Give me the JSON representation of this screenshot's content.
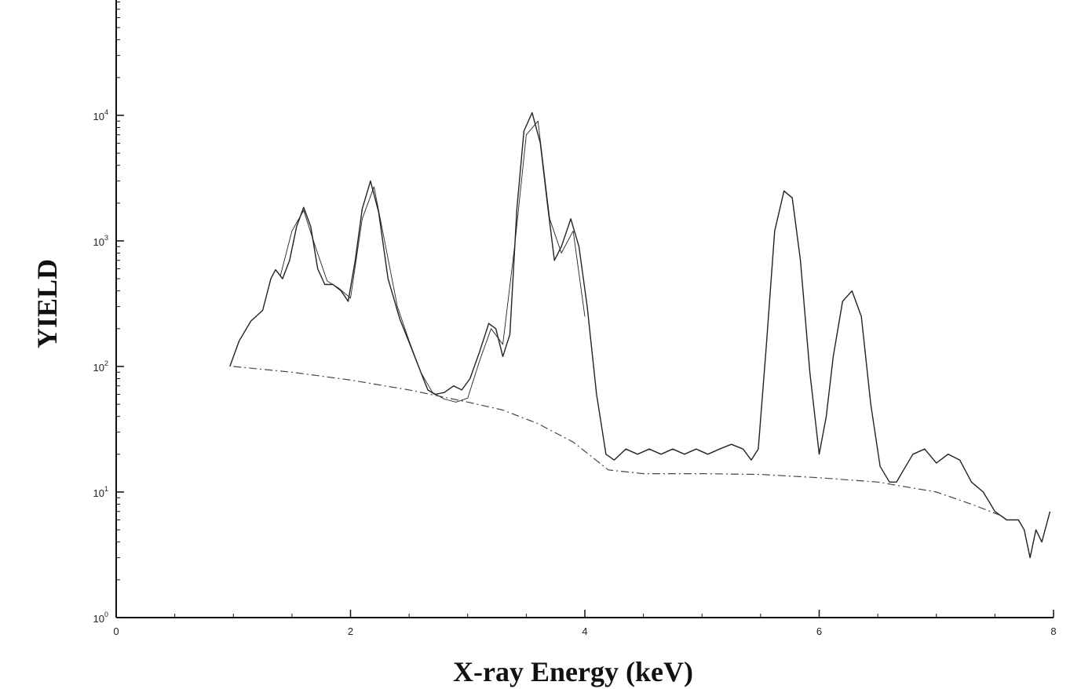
{
  "chart_data": {
    "type": "line",
    "title": "",
    "xlabel": "X-ray Energy (keV)",
    "ylabel": "YIELD",
    "xlim": [
      0,
      8
    ],
    "ylim": [
      1,
      100000
    ],
    "yscale": "log",
    "grid": false,
    "x_ticks": [
      {
        "value": 0,
        "label": "0"
      },
      {
        "value": 2,
        "label": "2"
      },
      {
        "value": 4,
        "label": "4"
      },
      {
        "value": 6,
        "label": "6"
      },
      {
        "value": 8,
        "label": "8"
      }
    ],
    "y_ticks": [
      {
        "value": 1,
        "base": "10",
        "exp": "0"
      },
      {
        "value": 10,
        "base": "10",
        "exp": "1"
      },
      {
        "value": 100,
        "base": "10",
        "exp": "2"
      },
      {
        "value": 1000,
        "base": "10",
        "exp": "3"
      },
      {
        "value": 10000,
        "base": "10",
        "exp": "4"
      }
    ],
    "series": [
      {
        "name": "",
        "color": "#222222",
        "style": "solid",
        "x": [
          0.97,
          1.05,
          1.15,
          1.25,
          1.32,
          1.36,
          1.42,
          1.48,
          1.54,
          1.6,
          1.66,
          1.72,
          1.78,
          1.85,
          1.92,
          1.98,
          2.04,
          2.1,
          2.17,
          2.24,
          2.32,
          2.42,
          2.52,
          2.6,
          2.66,
          2.72,
          2.8,
          2.88,
          2.95,
          3.02,
          3.1,
          3.18,
          3.24,
          3.3,
          3.36,
          3.42,
          3.48,
          3.55,
          3.62,
          3.68,
          3.74,
          3.8,
          3.88,
          3.95,
          4.02,
          4.1,
          4.18,
          4.25,
          4.35,
          4.45,
          4.55,
          4.65,
          4.75,
          4.85,
          4.95,
          5.05,
          5.15,
          5.25,
          5.35,
          5.42,
          5.48,
          5.55,
          5.62,
          5.7,
          5.77,
          5.84,
          5.92,
          6.0,
          6.06,
          6.12,
          6.2,
          6.28,
          6.36,
          6.44,
          6.52,
          6.6,
          6.66,
          6.72,
          6.8,
          6.9,
          7.0,
          7.1,
          7.2,
          7.3,
          7.4,
          7.5,
          7.6,
          7.7,
          7.75,
          7.8,
          7.85,
          7.9,
          7.97
        ],
        "y": [
          100,
          160,
          230,
          280,
          500,
          590,
          500,
          700,
          1300,
          1850,
          1300,
          600,
          450,
          450,
          400,
          330,
          700,
          1800,
          3000,
          1700,
          500,
          240,
          140,
          90,
          65,
          60,
          62,
          70,
          65,
          80,
          130,
          220,
          200,
          120,
          180,
          1800,
          7500,
          10500,
          6000,
          2000,
          700,
          900,
          1500,
          900,
          300,
          60,
          20,
          18,
          22,
          20,
          22,
          20,
          22,
          20,
          22,
          20,
          22,
          24,
          22,
          18,
          22,
          150,
          1200,
          2500,
          2200,
          700,
          90,
          20,
          40,
          120,
          330,
          400,
          250,
          50,
          16,
          12,
          12,
          15,
          20,
          22,
          17,
          20,
          18,
          12,
          10,
          7,
          6,
          6,
          5,
          3,
          5,
          4,
          7
        ]
      },
      {
        "name": "",
        "color": "#222222",
        "style": "solid-thin",
        "x": [
          1.4,
          1.5,
          1.6,
          1.7,
          1.8,
          1.9,
          2.0,
          2.1,
          2.2,
          2.3,
          2.4,
          2.5,
          2.6,
          2.7,
          2.8,
          2.9,
          3.0,
          3.1,
          3.2,
          3.3,
          3.4,
          3.5,
          3.6,
          3.7,
          3.8,
          3.9,
          4.0
        ],
        "y": [
          520,
          1200,
          1750,
          900,
          480,
          420,
          350,
          1500,
          2700,
          900,
          300,
          160,
          90,
          62,
          55,
          52,
          56,
          110,
          200,
          150,
          900,
          7000,
          9000,
          1500,
          800,
          1200,
          250
        ]
      },
      {
        "name": "",
        "color": "#444444",
        "style": "dash-dot",
        "x": [
          1.0,
          1.5,
          2.0,
          2.5,
          3.0,
          3.3,
          3.6,
          3.9,
          4.2,
          4.5,
          5.0,
          5.5,
          6.0,
          6.5,
          7.0,
          7.3,
          7.55
        ],
        "y": [
          100,
          90,
          78,
          65,
          52,
          45,
          35,
          25,
          15,
          14,
          14,
          13.8,
          13,
          12,
          10,
          8,
          6.5
        ]
      }
    ]
  }
}
